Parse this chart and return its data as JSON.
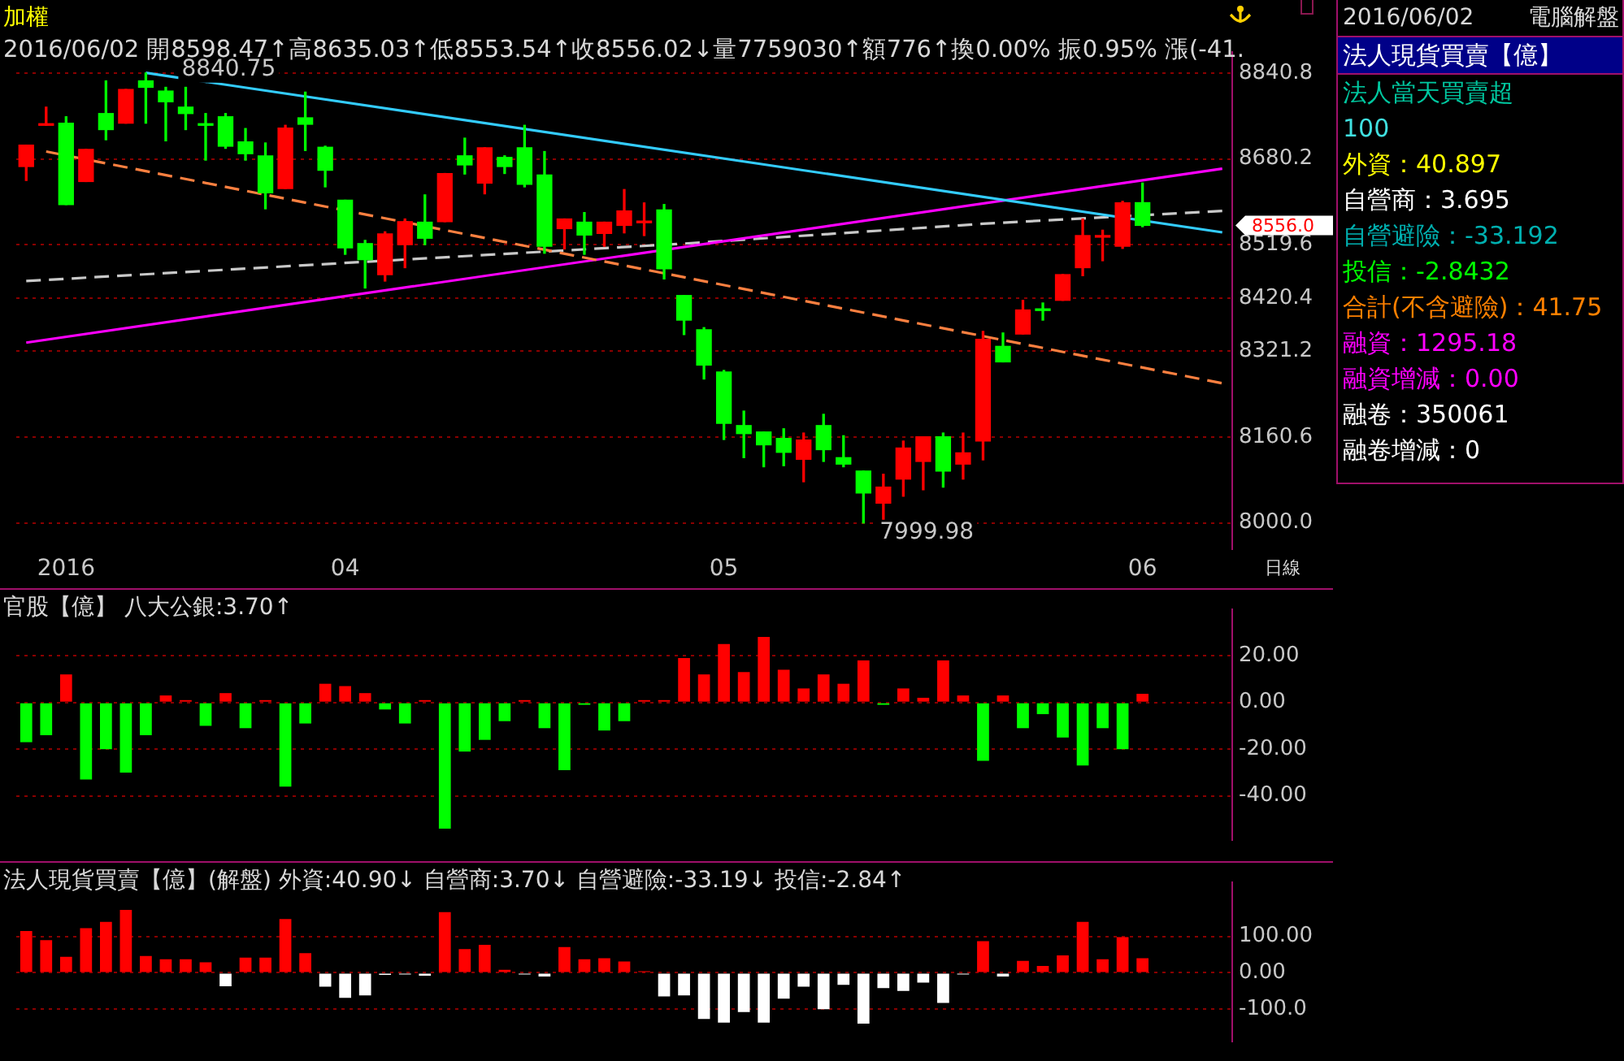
{
  "chart_data": [
    {
      "type": "candlestick",
      "title": "加權",
      "subtitle": "2016/06/02 開8598.47↑高8635.03↑低8553.54↑收8556.02↓量7759030↑額776↑換0.00% 振0.95% 漲(-41.",
      "categories": [
        null,
        null,
        "2016",
        null,
        null,
        null,
        null,
        null,
        null,
        null,
        null,
        null,
        null,
        null,
        null,
        null,
        "04",
        null,
        null,
        null,
        null,
        null,
        null,
        null,
        null,
        null,
        null,
        null,
        null,
        null,
        null,
        null,
        null,
        null,
        null,
        "05",
        null,
        null,
        null,
        null,
        null,
        null,
        null,
        null,
        null,
        null,
        null,
        null,
        null,
        null,
        null,
        null,
        null,
        null,
        null,
        null,
        "06",
        null,
        null,
        null,
        null
      ],
      "ohlc": [
        [
          8666,
          8706,
          8640,
          8706
        ],
        [
          8743,
          8777,
          8743,
          8745
        ],
        [
          8747,
          8759,
          8595,
          8595
        ],
        [
          8638,
          8698,
          8638,
          8698
        ],
        [
          8765,
          8826,
          8716,
          8735
        ],
        [
          8747,
          8810,
          8747,
          8810
        ],
        [
          8826,
          8840.75,
          8747,
          8814
        ],
        [
          8807,
          8814,
          8714,
          8787
        ],
        [
          8777,
          8814,
          8735,
          8765
        ],
        [
          8745,
          8765,
          8678,
          8743
        ],
        [
          8759,
          8765,
          8700,
          8704
        ],
        [
          8712,
          8737,
          8678,
          8690
        ],
        [
          8686,
          8710,
          8587,
          8617
        ],
        [
          8625,
          8743,
          8625,
          8738
        ],
        [
          8757,
          8805,
          8696,
          8745
        ],
        [
          8702,
          8704,
          8628,
          8659
        ],
        [
          8603,
          8603,
          8502,
          8514
        ],
        [
          8522,
          8528,
          8439,
          8492
        ],
        [
          8464,
          8544,
          8452,
          8540
        ],
        [
          8520,
          8568,
          8477,
          8563
        ],
        [
          8562,
          8613,
          8520,
          8532
        ],
        [
          8563,
          8653,
          8563,
          8653
        ],
        [
          8686,
          8719,
          8652,
          8669
        ],
        [
          8635,
          8701,
          8615,
          8701
        ],
        [
          8683,
          8686,
          8653,
          8666
        ],
        [
          8701,
          8743,
          8628,
          8633
        ],
        [
          8650,
          8694,
          8504,
          8517
        ],
        [
          8550,
          8568,
          8512,
          8568
        ],
        [
          8562,
          8580,
          8502,
          8538
        ],
        [
          8541,
          8562,
          8517,
          8562
        ],
        [
          8556,
          8623,
          8542,
          8583
        ],
        [
          8561,
          8598,
          8537,
          8563
        ],
        [
          8585,
          8595,
          8456,
          8475
        ],
        [
          8425,
          8425,
          8352,
          8379
        ],
        [
          8361,
          8365,
          8269,
          8295
        ],
        [
          8282,
          8285,
          8156,
          8186
        ],
        [
          8182,
          8209,
          8122,
          8167
        ],
        [
          8170,
          8170,
          8105,
          8146
        ],
        [
          8158,
          8176,
          8107,
          8132
        ],
        [
          8119,
          8168,
          8077,
          8155
        ],
        [
          8182,
          8203,
          8115,
          8137
        ],
        [
          8122,
          8163,
          8105,
          8110
        ],
        [
          8097,
          8097,
          7999.98,
          8056
        ],
        [
          8037,
          8091,
          8004,
          8067
        ],
        [
          8082,
          8153,
          8050,
          8140
        ],
        [
          8115,
          8161,
          8062,
          8161
        ],
        [
          8161,
          8168,
          8067,
          8097
        ],
        [
          8110,
          8168,
          8082,
          8131
        ],
        [
          8153,
          8358,
          8118,
          8343
        ],
        [
          8330,
          8355,
          8301,
          8301
        ],
        [
          8353,
          8416,
          8353,
          8398
        ],
        [
          8399,
          8411,
          8379,
          8397
        ],
        [
          8416,
          8464,
          8416,
          8464
        ],
        [
          8477,
          8568,
          8462,
          8537
        ],
        [
          8534,
          8547,
          8490,
          8536
        ],
        [
          8517,
          8601,
          8513,
          8598
        ],
        [
          8598.47,
          8635.03,
          8553.54,
          8556.02
        ],
        null,
        null,
        null,
        null
      ],
      "colors": [
        "#ff0000",
        "#ff0000",
        "#00ff00",
        "#ff0000",
        "#00ff00",
        "#ff0000",
        "#00ff00",
        "#00ff00",
        "#00ff00",
        "#00ff00",
        "#00ff00",
        "#00ff00",
        "#00ff00",
        "#ff0000",
        "#00ff00",
        "#00ff00",
        "#00ff00",
        "#00ff00",
        "#ff0000",
        "#ff0000",
        "#00ff00",
        "#ff0000",
        "#00ff00",
        "#ff0000",
        "#00ff00",
        "#00ff00",
        "#00ff00",
        "#ff0000",
        "#00ff00",
        "#ff0000",
        "#ff0000",
        "#ff0000",
        "#00ff00",
        "#00ff00",
        "#00ff00",
        "#00ff00",
        "#00ff00",
        "#00ff00",
        "#00ff00",
        "#ff0000",
        "#00ff00",
        "#00ff00",
        "#00ff00",
        "#ff0000",
        "#ff0000",
        "#ff0000",
        "#00ff00",
        "#ff0000",
        "#ff0000",
        "#00ff00",
        "#ff0000",
        "#00ff00",
        "#ff0000",
        "#ff0000",
        "#ff0000",
        "#ff0000",
        "#00ff00",
        null,
        null,
        null,
        null
      ],
      "series": [
        {
          "type": "line",
          "color": "#33ccff",
          "values": [
            null,
            null,
            null,
            null,
            null,
            null,
            8841,
            null,
            null,
            null,
            null,
            null,
            null,
            null,
            null,
            null,
            null,
            null,
            null,
            null,
            null,
            null,
            null,
            null,
            null,
            null,
            null,
            null,
            null,
            null,
            null,
            null,
            null,
            null,
            null,
            null,
            null,
            null,
            null,
            null,
            null,
            null,
            null,
            null,
            null,
            null,
            null,
            null,
            null,
            null,
            null,
            null,
            null,
            null,
            null,
            null,
            null,
            null,
            null,
            null,
            8543
          ]
        },
        {
          "type": "line",
          "color": "#ff8040",
          "line_style": "dashed",
          "values": [
            null,
            8694,
            null,
            null,
            null,
            null,
            null,
            null,
            null,
            null,
            null,
            null,
            null,
            null,
            null,
            null,
            null,
            null,
            null,
            null,
            null,
            null,
            null,
            null,
            null,
            null,
            null,
            null,
            null,
            null,
            null,
            null,
            null,
            null,
            null,
            null,
            null,
            null,
            null,
            null,
            null,
            null,
            null,
            null,
            null,
            null,
            null,
            null,
            null,
            null,
            null,
            null,
            null,
            null,
            null,
            null,
            null,
            null,
            null,
            null,
            8261
          ]
        },
        {
          "type": "line",
          "color": "#ff00ff",
          "values": [
            8337,
            null,
            null,
            null,
            null,
            null,
            null,
            null,
            null,
            null,
            null,
            null,
            null,
            null,
            null,
            null,
            null,
            null,
            null,
            null,
            null,
            null,
            null,
            null,
            null,
            null,
            null,
            null,
            null,
            null,
            null,
            null,
            null,
            null,
            null,
            null,
            null,
            null,
            null,
            null,
            null,
            null,
            null,
            null,
            null,
            null,
            null,
            null,
            null,
            null,
            null,
            null,
            null,
            null,
            null,
            null,
            null,
            null,
            null,
            null,
            8662
          ]
        },
        {
          "type": "line",
          "color": "#c8c8c8",
          "line_style": "dashed",
          "values": [
            8452,
            null,
            null,
            null,
            null,
            null,
            null,
            null,
            null,
            null,
            null,
            null,
            null,
            null,
            null,
            null,
            null,
            null,
            null,
            null,
            null,
            null,
            null,
            null,
            null,
            null,
            8507,
            null,
            null,
            null,
            null,
            null,
            null,
            8522,
            null,
            null,
            null,
            null,
            null,
            null,
            null,
            null,
            null,
            null,
            null,
            null,
            null,
            null,
            8559,
            null,
            null,
            null,
            null,
            null,
            null,
            null,
            null,
            null,
            null,
            null,
            8583
          ]
        }
      ],
      "ylim": [
        7951,
        8880
      ],
      "yticks": [
        {
          "value": 8000,
          "label": "8000.0"
        },
        {
          "value": 8160.6,
          "label": "8160.6"
        },
        {
          "value": 8321.2,
          "label": "8321.2"
        },
        {
          "value": 8420.4,
          "label": "8420.4"
        },
        {
          "value": 8519.6,
          "label": "8519.6"
        },
        {
          "value": 8680.2,
          "label": "8680.2"
        },
        {
          "value": 8840.8,
          "label": "8840.8"
        }
      ],
      "grid": "y",
      "legend": false,
      "annotations": [
        "8840.75",
        "7999.98",
        "8556.0",
        "日線"
      ]
    },
    {
      "type": "bar",
      "title": "官股【億】 八大公銀:3.70↑",
      "categories": [
        null,
        null,
        null,
        null,
        null,
        null,
        null,
        null,
        null,
        null,
        null,
        null,
        null,
        null,
        null,
        null,
        null,
        null,
        null,
        null,
        null,
        null,
        null,
        null,
        null,
        null,
        null,
        null,
        null,
        null,
        null,
        null,
        null,
        null,
        null,
        null,
        null,
        null,
        null,
        null,
        null,
        null,
        null,
        null,
        null,
        null,
        null,
        null,
        null,
        null,
        null,
        null,
        null,
        null,
        null,
        null,
        null,
        null,
        null,
        null,
        null
      ],
      "values": [
        -17,
        -14,
        12,
        -33,
        -20,
        -30,
        -14,
        3,
        1,
        -10,
        4,
        -11,
        1,
        -36,
        -9,
        8,
        7,
        4,
        -3,
        -9,
        1,
        -54,
        -21,
        -16,
        -8,
        1,
        -11,
        -29,
        -1,
        -12,
        -8,
        1,
        1,
        19,
        12,
        25,
        13,
        28,
        14,
        6,
        12,
        8,
        18,
        -1,
        6,
        2,
        18,
        3,
        -25,
        3,
        -11,
        -5,
        -15,
        -27,
        -11,
        -20,
        3.7,
        null,
        null,
        null,
        null
      ],
      "colors": [
        "#00ff00",
        "#00ff00",
        "#ff0000",
        "#00ff00",
        "#00ff00",
        "#00ff00",
        "#00ff00",
        "#ff0000",
        "#ff0000",
        "#00ff00",
        "#ff0000",
        "#00ff00",
        "#ff0000",
        "#00ff00",
        "#00ff00",
        "#ff0000",
        "#ff0000",
        "#ff0000",
        "#00ff00",
        "#00ff00",
        "#ff0000",
        "#00ff00",
        "#00ff00",
        "#00ff00",
        "#00ff00",
        "#ff0000",
        "#00ff00",
        "#00ff00",
        "#00ff00",
        "#00ff00",
        "#00ff00",
        "#ff0000",
        "#ff0000",
        "#ff0000",
        "#ff0000",
        "#ff0000",
        "#ff0000",
        "#ff0000",
        "#ff0000",
        "#ff0000",
        "#ff0000",
        "#ff0000",
        "#ff0000",
        "#00ff00",
        "#ff0000",
        "#ff0000",
        "#ff0000",
        "#ff0000",
        "#00ff00",
        "#ff0000",
        "#00ff00",
        "#00ff00",
        "#00ff00",
        "#00ff00",
        "#00ff00",
        "#00ff00",
        "#ff0000",
        null,
        null,
        null,
        null
      ],
      "ylim": [
        -59,
        40
      ],
      "yticks": [
        {
          "value": -40,
          "label": "-40.00"
        },
        {
          "value": -20,
          "label": "-20.00"
        },
        {
          "value": 0,
          "label": "0.00"
        },
        {
          "value": 20,
          "label": "20.00"
        }
      ],
      "grid": "y",
      "legend": false,
      "tick_labels": "y"
    },
    {
      "type": "bar",
      "title": "法人現貨買賣【億】(解盤) 外資:40.90↓ 自營商:3.70↓ 自營避險:-33.19↓ 投信:-2.84↑",
      "categories": [
        null,
        null,
        null,
        null,
        null,
        null,
        null,
        null,
        null,
        null,
        null,
        null,
        null,
        null,
        null,
        null,
        null,
        null,
        null,
        null,
        null,
        null,
        null,
        null,
        null,
        null,
        null,
        null,
        null,
        null,
        null,
        null,
        null,
        null,
        null,
        null,
        null,
        null,
        null,
        null,
        null,
        null,
        null,
        null,
        null,
        null,
        null,
        null,
        null,
        null,
        null,
        null,
        null,
        null,
        null,
        null,
        null,
        null,
        null,
        null,
        null
      ],
      "values": [
        115,
        90,
        44,
        123,
        140,
        173,
        46,
        37,
        37,
        29,
        -37,
        42,
        42,
        148,
        54,
        -38,
        -69,
        -62,
        -6,
        -4,
        -8,
        167,
        65,
        77,
        8,
        -4,
        -10,
        71,
        37,
        40,
        31,
        2,
        -65,
        -62,
        -127,
        -137,
        -108,
        -137,
        -71,
        -38,
        -100,
        -33,
        -140,
        -42,
        -50,
        -27,
        -83,
        -2,
        87,
        -10,
        33,
        19,
        48,
        140,
        37,
        98,
        40,
        null,
        null,
        null,
        null
      ],
      "colors": [
        "#ff0000",
        "#ff0000",
        "#ff0000",
        "#ff0000",
        "#ff0000",
        "#ff0000",
        "#ff0000",
        "#ff0000",
        "#ff0000",
        "#ff0000",
        "#ffffff",
        "#ff0000",
        "#ff0000",
        "#ff0000",
        "#ff0000",
        "#ffffff",
        "#ffffff",
        "#ffffff",
        "#ffffff",
        "#ffffff",
        "#ffffff",
        "#ff0000",
        "#ff0000",
        "#ff0000",
        "#ff0000",
        "#ffffff",
        "#ffffff",
        "#ff0000",
        "#ff0000",
        "#ff0000",
        "#ff0000",
        "#ff0000",
        "#ffffff",
        "#ffffff",
        "#ffffff",
        "#ffffff",
        "#ffffff",
        "#ffffff",
        "#ffffff",
        "#ffffff",
        "#ffffff",
        "#ffffff",
        "#ffffff",
        "#ffffff",
        "#ffffff",
        "#ffffff",
        "#ffffff",
        "#ffffff",
        "#ff0000",
        "#ffffff",
        "#ff0000",
        "#ff0000",
        "#ff0000",
        "#ff0000",
        "#ff0000",
        "#ff0000",
        "#ff0000",
        null,
        null,
        null,
        null
      ],
      "ylim": [
        -190,
        250
      ],
      "yticks": [
        {
          "value": -100,
          "label": "-100.0"
        },
        {
          "value": 0,
          "label": "0.00"
        },
        {
          "value": 100,
          "label": "100.00"
        }
      ],
      "grid": "y",
      "legend": false,
      "tick_labels": "y"
    },
    {
      "type": "other",
      "title": "2016/06/02",
      "subtitle": "電腦解盤",
      "annotations": [
        "法人現貨買賣【億】",
        "法人當天買賣超",
        "100",
        "外資：40.897",
        "自營商：3.695",
        "自營避險：-33.192",
        "投信：-2.8432",
        "合計(不含避險)：41.75",
        "融資：1295.18",
        "融資增減：0.00",
        "融卷：350061",
        "融卷增減：0"
      ],
      "colors": [
        "#ffffff",
        "#00c8a0",
        "#40e0e0",
        "#ffff00",
        "#ffffff",
        "#00b0b0",
        "#00ff00",
        "#ff8000",
        "#ff00ff",
        "#ff00ff",
        "#ffffff",
        "#ffffff"
      ]
    }
  ]
}
